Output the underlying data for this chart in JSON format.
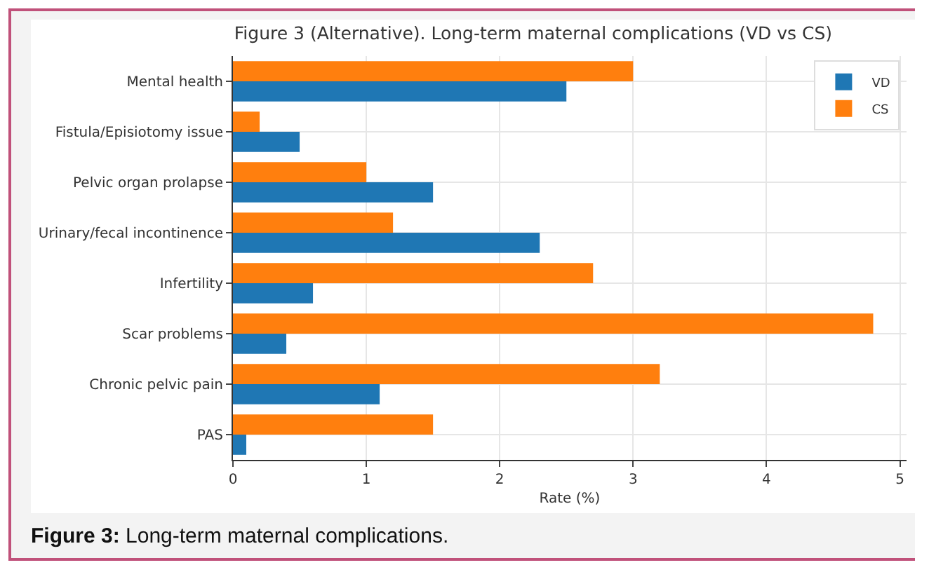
{
  "chart_data": {
    "type": "bar",
    "orientation": "horizontal",
    "title": "Figure 3 (Alternative). Long-term maternal complications (VD vs CS)",
    "xlabel": "Rate (%)",
    "categories": [
      "Mental health",
      "Fistula/Episiotomy issue",
      "Pelvic organ prolapse",
      "Urinary/fecal incontinence",
      "Infertility",
      "Scar problems",
      "Chronic pelvic pain",
      "PAS"
    ],
    "series": [
      {
        "name": "VD",
        "color": "#1f77b4",
        "values": [
          2.5,
          0.5,
          1.5,
          2.3,
          0.6,
          0.4,
          1.1,
          0.1
        ]
      },
      {
        "name": "CS",
        "color": "#ff7f0e",
        "values": [
          3.0,
          0.2,
          1.0,
          1.2,
          2.7,
          4.8,
          3.2,
          1.5
        ]
      }
    ],
    "xlim": [
      0,
      5.05
    ],
    "xticks": [
      0,
      1,
      2,
      3,
      4,
      5
    ],
    "grid": true,
    "legend": "top right",
    "annotations": [
      "Figure 3: Long-term maternal complications."
    ]
  }
}
